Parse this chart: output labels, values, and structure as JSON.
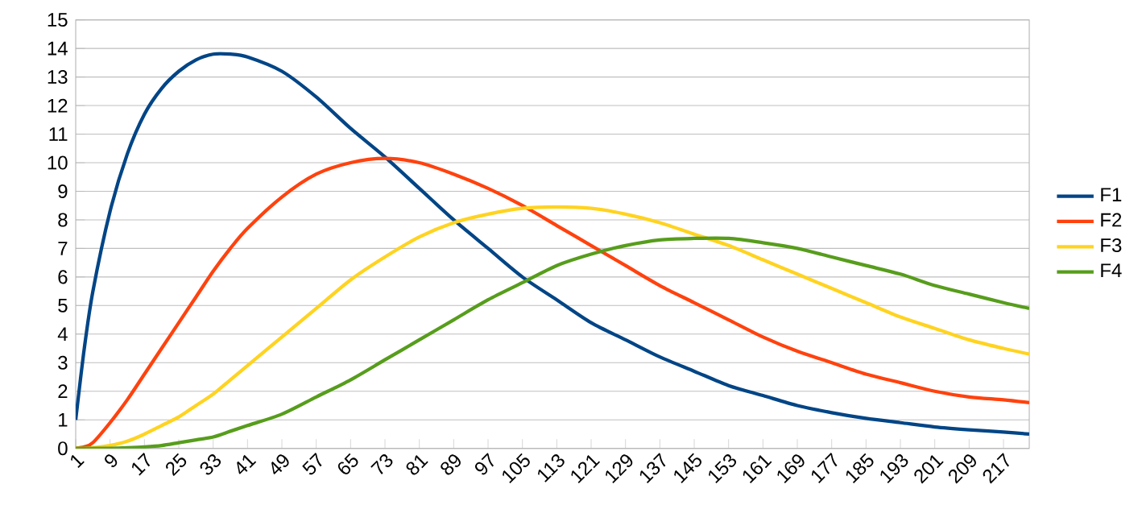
{
  "chart_data": {
    "type": "line",
    "x": [
      1,
      3,
      5,
      9,
      13,
      17,
      21,
      25,
      29,
      33,
      37,
      41,
      49,
      57,
      65,
      73,
      81,
      89,
      97,
      105,
      113,
      121,
      129,
      137,
      145,
      153,
      161,
      169,
      177,
      185,
      193,
      201,
      209,
      217,
      223
    ],
    "xlim": [
      1,
      223
    ],
    "xticks": [
      1,
      9,
      17,
      25,
      33,
      41,
      49,
      57,
      65,
      73,
      81,
      89,
      97,
      105,
      113,
      121,
      129,
      137,
      145,
      153,
      161,
      169,
      177,
      185,
      193,
      201,
      209,
      217
    ],
    "ylim": [
      0,
      15
    ],
    "yticks": [
      0,
      1,
      2,
      3,
      4,
      5,
      6,
      7,
      8,
      9,
      10,
      11,
      12,
      13,
      14,
      15
    ],
    "grid": "y",
    "legend": "right",
    "marker": "none",
    "line_style": "solid",
    "series": [
      {
        "name": "F1",
        "color": "#004586",
        "values": [
          1.0,
          3.5,
          5.5,
          8.3,
          10.3,
          11.7,
          12.6,
          13.2,
          13.6,
          13.8,
          13.8,
          13.7,
          13.2,
          12.3,
          11.2,
          10.2,
          9.1,
          8.0,
          7.0,
          6.0,
          5.2,
          4.4,
          3.8,
          3.2,
          2.7,
          2.2,
          1.85,
          1.5,
          1.25,
          1.05,
          0.9,
          0.75,
          0.65,
          0.57,
          0.5
        ]
      },
      {
        "name": "F2",
        "color": "#ff420e",
        "values": [
          0,
          0.05,
          0.2,
          0.9,
          1.7,
          2.6,
          3.5,
          4.4,
          5.3,
          6.2,
          7.0,
          7.7,
          8.8,
          9.6,
          10.0,
          10.15,
          10.0,
          9.6,
          9.1,
          8.5,
          7.8,
          7.1,
          6.4,
          5.7,
          5.1,
          4.5,
          3.9,
          3.4,
          3.0,
          2.6,
          2.3,
          2.0,
          1.8,
          1.7,
          1.6
        ]
      },
      {
        "name": "F3",
        "color": "#ffd320",
        "values": [
          0,
          0,
          0.02,
          0.1,
          0.25,
          0.5,
          0.8,
          1.1,
          1.5,
          1.9,
          2.4,
          2.9,
          3.9,
          4.9,
          5.9,
          6.7,
          7.4,
          7.9,
          8.2,
          8.4,
          8.45,
          8.4,
          8.2,
          7.9,
          7.5,
          7.1,
          6.6,
          6.1,
          5.6,
          5.1,
          4.6,
          4.2,
          3.8,
          3.5,
          3.3
        ]
      },
      {
        "name": "F4",
        "color": "#579d1c",
        "values": [
          0,
          0,
          0,
          0,
          0.02,
          0.05,
          0.1,
          0.2,
          0.3,
          0.4,
          0.6,
          0.8,
          1.2,
          1.8,
          2.4,
          3.1,
          3.8,
          4.5,
          5.2,
          5.8,
          6.4,
          6.8,
          7.1,
          7.3,
          7.35,
          7.35,
          7.2,
          7.0,
          6.7,
          6.4,
          6.1,
          5.7,
          5.4,
          5.1,
          4.9
        ]
      }
    ]
  }
}
